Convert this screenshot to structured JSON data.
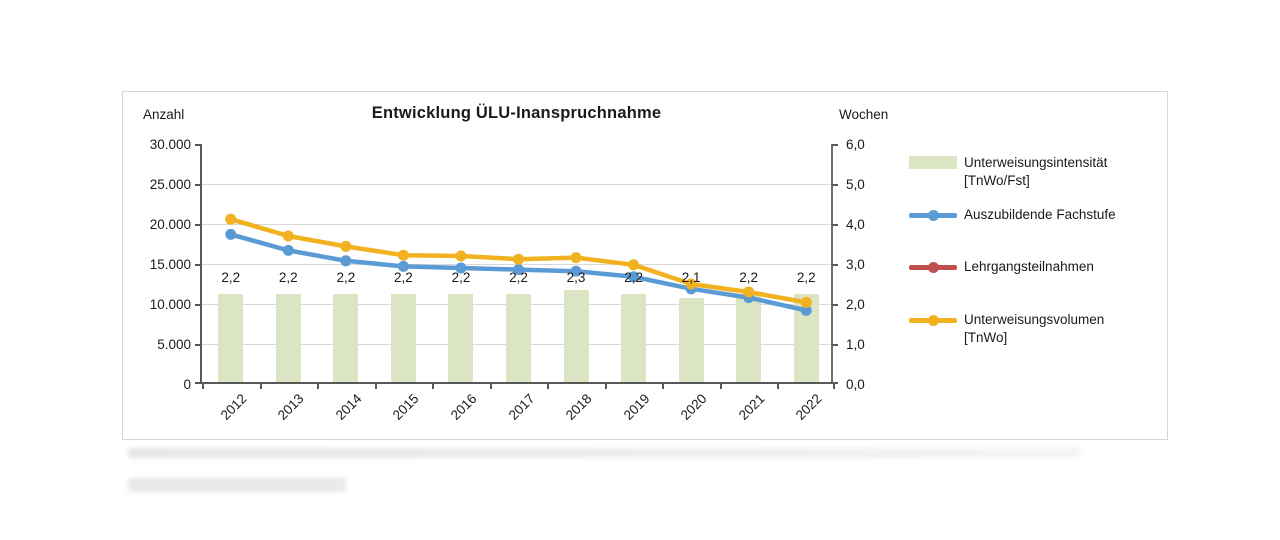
{
  "chart_data": {
    "type": "combo-bar-line",
    "title": "Entwicklung ÜLU-Inanspruchnahme",
    "categories": [
      "2012",
      "2013",
      "2014",
      "2015",
      "2016",
      "2017",
      "2018",
      "2019",
      "2020",
      "2021",
      "2022"
    ],
    "left_axis": {
      "label": "Anzahl",
      "min": 0,
      "max": 30000,
      "ticks": [
        "30.000",
        "25.000",
        "20.000",
        "15.000",
        "10.000",
        "5.000",
        "0"
      ]
    },
    "right_axis": {
      "label": "Wochen",
      "min": 0,
      "max": 6,
      "ticks": [
        "6,0",
        "5,0",
        "4,0",
        "3,0",
        "2,0",
        "1,0",
        "0,0"
      ]
    },
    "grid": "horizontal",
    "series": [
      {
        "name": "Unterweisungsintensität [TnWo/Fst]",
        "type": "bar",
        "axis": "right",
        "color": "#dbe4c3",
        "values": [
          2.2,
          2.2,
          2.2,
          2.2,
          2.2,
          2.2,
          2.3,
          2.2,
          2.1,
          2.2,
          2.2
        ],
        "labels": [
          "2,2",
          "2,2",
          "2,2",
          "2,2",
          "2,2",
          "2,2",
          "2,3",
          "2,2",
          "2,1",
          "2,2",
          "2,2"
        ]
      },
      {
        "name": "Auszubildende Fachstufe",
        "type": "line",
        "axis": "left",
        "color": "#5b9bd5",
        "values": [
          18700,
          16700,
          15400,
          14700,
          14500,
          14300,
          14100,
          13400,
          11900,
          10800,
          9200
        ]
      },
      {
        "name": "Lehrgangsteilnahmen",
        "type": "line",
        "axis": "left",
        "color": "#c0504d",
        "visible": false,
        "values": []
      },
      {
        "name": "Unterweisungsvolumen [TnWo]",
        "type": "line",
        "axis": "left",
        "color": "#f2b11f",
        "values": [
          20600,
          18500,
          17200,
          16100,
          16000,
          15600,
          15800,
          14900,
          12500,
          11500,
          10200
        ]
      }
    ],
    "legend": {
      "position": "right",
      "entries": [
        {
          "swatch": "bar",
          "color": "#dbe4c3",
          "lines": [
            "Unterweisungsintensität",
            "[TnWo/Fst]"
          ]
        },
        {
          "swatch": "line",
          "color": "#5b9bd5",
          "lines": [
            "Auszubildende Fachstufe"
          ]
        },
        {
          "swatch": "line",
          "color": "#c0504d",
          "lines": [
            "Lehrgangsteilnahmen"
          ]
        },
        {
          "swatch": "line",
          "color": "#f2b11f",
          "lines": [
            "Unterweisungsvolumen",
            "[TnWo]"
          ]
        }
      ]
    },
    "footnote": {
      "blurred": true,
      "readable": false,
      "lines": 2
    }
  }
}
